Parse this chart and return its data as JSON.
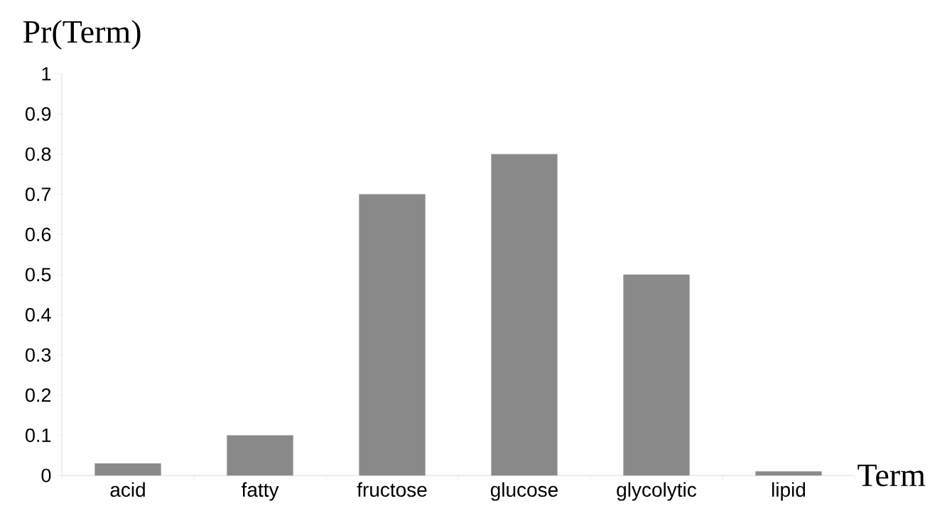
{
  "chart_data": {
    "type": "bar",
    "xlabel": "Term",
    "ylabel": "Pr(Term)",
    "categories": [
      "acid",
      "fatty",
      "fructose",
      "glucose",
      "glycolytic",
      "lipid"
    ],
    "values": [
      0.03,
      0.1,
      0.7,
      0.8,
      0.5,
      0.01
    ],
    "color": "#898989",
    "ylim": [
      0,
      1
    ],
    "yticks": [
      0,
      0.1,
      0.2,
      0.3,
      0.4,
      0.5,
      0.6,
      0.7,
      0.8,
      0.9,
      1
    ]
  }
}
